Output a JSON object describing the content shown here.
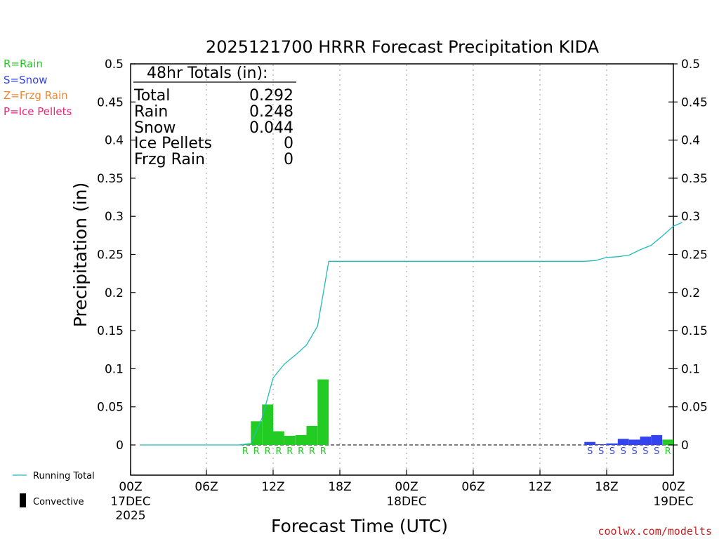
{
  "title": "2025121700 HRRR Forecast Precipitation KIDA",
  "ylabel": "Precipitation (in)",
  "xlabel": "Forecast Time (UTC)",
  "source": "coolwx.com/modelts",
  "type_legend": [
    {
      "label": "R=Rain",
      "color": "#22cc22"
    },
    {
      "label": "S=Snow",
      "color": "#3344ee"
    },
    {
      "label": "Z=Frzg Rain",
      "color": "#ee8833"
    },
    {
      "label": "P=Ice Pellets",
      "color": "#ee2277"
    }
  ],
  "bottom_legend": {
    "running_total": "Running Total",
    "convective": "Convective",
    "running_total_color": "#22bbbb"
  },
  "totals": {
    "header": "48hr Totals (in):",
    "rows": [
      {
        "label": "Total",
        "value": "0.292"
      },
      {
        "label": "Rain",
        "value": "0.248"
      },
      {
        "label": "Snow",
        "value": "0.044"
      },
      {
        "label": "Ice Pellets",
        "value": "0"
      },
      {
        "label": "Frzg Rain",
        "value": "0"
      }
    ]
  },
  "chart_data": {
    "type": "bar",
    "xlim": [
      0,
      48
    ],
    "ylim": [
      0,
      0.5
    ],
    "yticks": [
      "0",
      "0.05",
      "0.1",
      "0.15",
      "0.2",
      "0.25",
      "0.3",
      "0.35",
      "0.4",
      "0.45",
      "0.5"
    ],
    "xticks": [
      {
        "hour": 0,
        "label": "00Z",
        "date": "17DEC",
        "year": "2025"
      },
      {
        "hour": 6,
        "label": "06Z"
      },
      {
        "hour": 12,
        "label": "12Z"
      },
      {
        "hour": 18,
        "label": "18Z"
      },
      {
        "hour": 24,
        "label": "00Z",
        "date": "18DEC"
      },
      {
        "hour": 30,
        "label": "06Z"
      },
      {
        "hour": 36,
        "label": "12Z"
      },
      {
        "hour": 42,
        "label": "18Z"
      },
      {
        "hour": 48,
        "label": "00Z",
        "date": "19DEC"
      }
    ],
    "grid": "vertical-dotted",
    "bars": [
      {
        "hour": 10,
        "value": 0.001,
        "type": "R"
      },
      {
        "hour": 11,
        "value": 0.031,
        "type": "R"
      },
      {
        "hour": 12,
        "value": 0.053,
        "type": "R"
      },
      {
        "hour": 13,
        "value": 0.018,
        "type": "R"
      },
      {
        "hour": 14,
        "value": 0.012,
        "type": "R"
      },
      {
        "hour": 15,
        "value": 0.013,
        "type": "R"
      },
      {
        "hour": 16,
        "value": 0.025,
        "type": "R"
      },
      {
        "hour": 17,
        "value": 0.086,
        "type": "R"
      },
      {
        "hour": 41,
        "value": 0.004,
        "type": "S"
      },
      {
        "hour": 42,
        "value": 0.001,
        "type": "S"
      },
      {
        "hour": 43,
        "value": 0.002,
        "type": "S"
      },
      {
        "hour": 44,
        "value": 0.008,
        "type": "S"
      },
      {
        "hour": 45,
        "value": 0.007,
        "type": "S"
      },
      {
        "hour": 46,
        "value": 0.011,
        "type": "S"
      },
      {
        "hour": 47,
        "value": 0.013,
        "type": "S"
      },
      {
        "hour": 48,
        "value": 0.007,
        "type": "R"
      }
    ],
    "running_total": [
      [
        0,
        0
      ],
      [
        9,
        0
      ],
      [
        10,
        0.002
      ],
      [
        11,
        0.035
      ],
      [
        12,
        0.088
      ],
      [
        13,
        0.106
      ],
      [
        14,
        0.118
      ],
      [
        15,
        0.131
      ],
      [
        16,
        0.156
      ],
      [
        17,
        0.241
      ],
      [
        40,
        0.241
      ],
      [
        41,
        0.242
      ],
      [
        42,
        0.246
      ],
      [
        43,
        0.247
      ],
      [
        44,
        0.249
      ],
      [
        45,
        0.256
      ],
      [
        46,
        0.262
      ],
      [
        47,
        0.274
      ],
      [
        48,
        0.287
      ],
      [
        48.8,
        0.292
      ]
    ]
  }
}
